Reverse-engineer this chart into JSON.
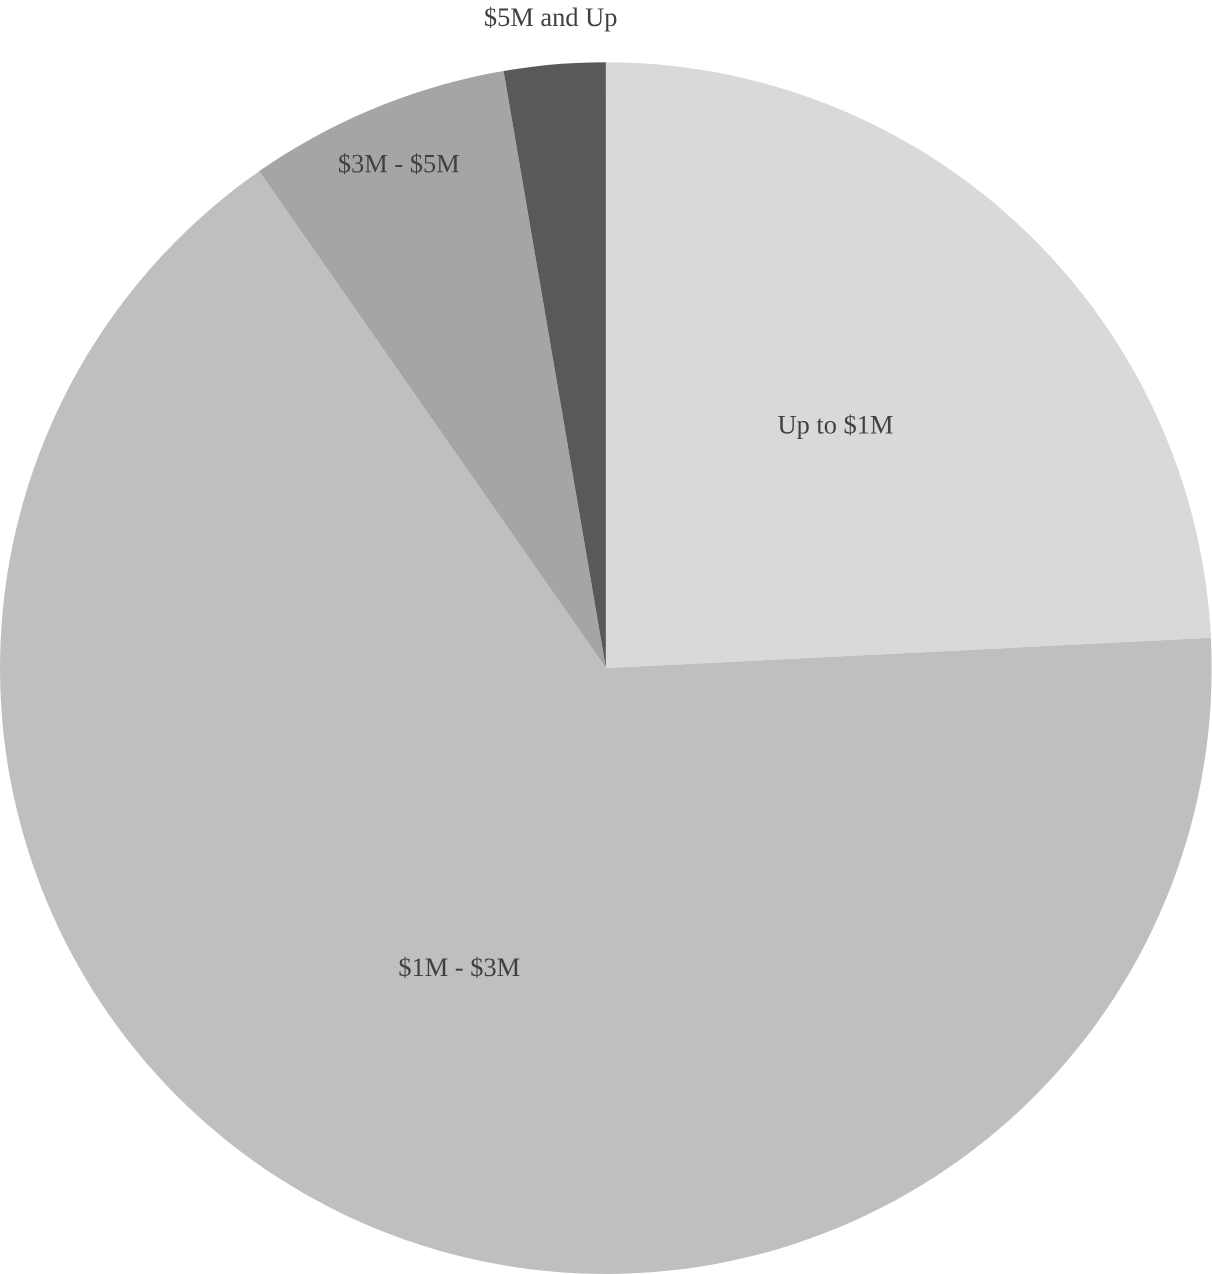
{
  "chart_data": {
    "type": "pie",
    "categories": [
      "Up to $1M",
      "$1M - $3M",
      "$3M - $5M",
      "$5M and Up"
    ],
    "values": [
      24.2,
      66.1,
      7.0,
      2.7
    ],
    "colors": [
      "#d9d9d9",
      "#bfbfbf",
      "#a5a5a5",
      "#595959"
    ]
  }
}
